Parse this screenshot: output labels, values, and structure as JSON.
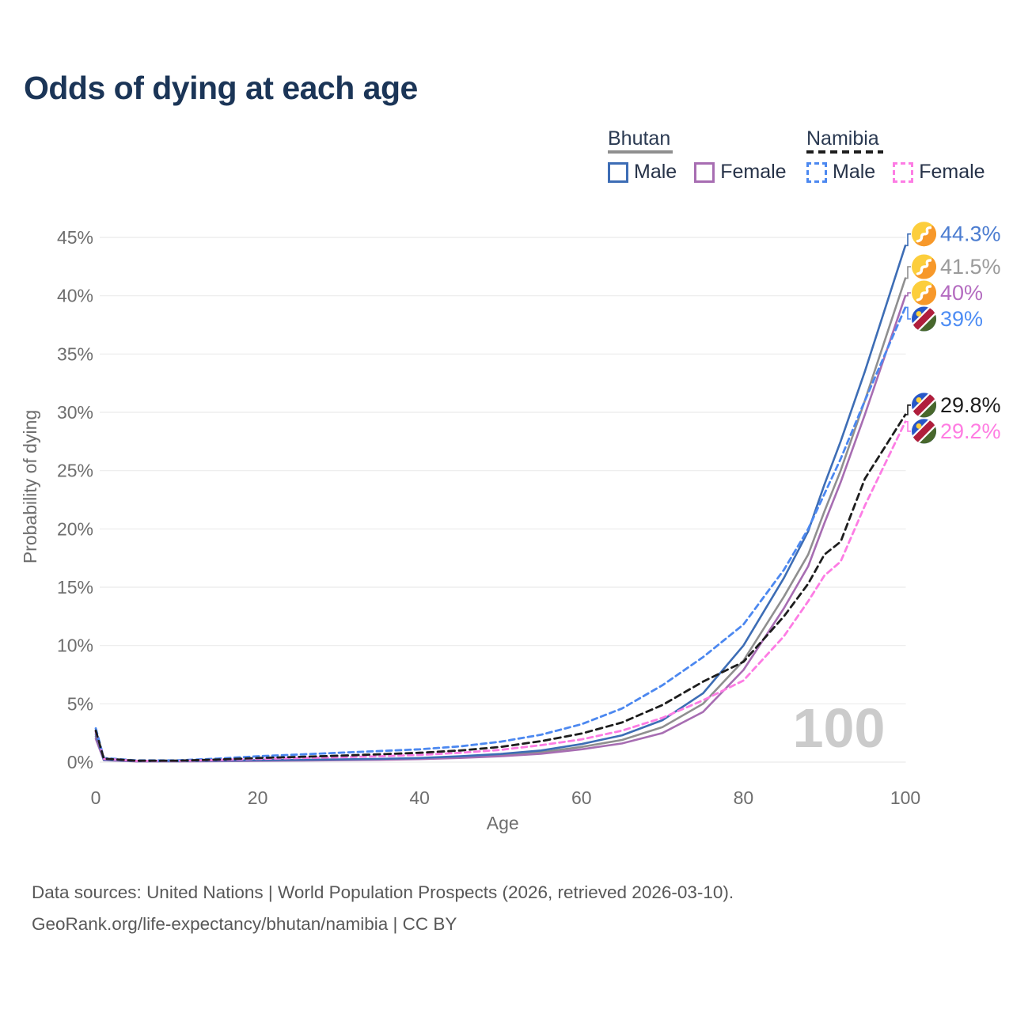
{
  "title": "Odds of dying at each age",
  "legend": {
    "countries": [
      {
        "name": "Bhutan",
        "line_style": "solid",
        "line_color": "#8f8f8f",
        "items": [
          {
            "label": "Male",
            "color": "#3d6db5",
            "style": "solid"
          },
          {
            "label": "Female",
            "color": "#a76db2",
            "style": "solid"
          }
        ]
      },
      {
        "name": "Namibia",
        "line_style": "dashed",
        "line_color": "#1d1d1d",
        "items": [
          {
            "label": "Male",
            "color": "#4c88f0",
            "style": "dashed"
          },
          {
            "label": "Female",
            "color": "#fd7ce4",
            "style": "dashed"
          }
        ]
      }
    ]
  },
  "chart_data": {
    "type": "line",
    "title": "Odds of dying at each age",
    "xlabel": "Age",
    "ylabel": "Probability of dying",
    "xlim": [
      0,
      100
    ],
    "ylim": [
      0,
      45
    ],
    "xticks": [
      0,
      20,
      40,
      60,
      80,
      100
    ],
    "yticks": [
      0,
      5,
      10,
      15,
      20,
      25,
      30,
      35,
      40,
      45
    ],
    "ytick_suffix": "%",
    "grid": "horizontal",
    "legend_position": "top-right",
    "age_indicator": "100",
    "ages": [
      0,
      1,
      5,
      10,
      15,
      20,
      25,
      30,
      35,
      40,
      45,
      50,
      55,
      60,
      65,
      70,
      75,
      80,
      85,
      88,
      90,
      92,
      95,
      100
    ],
    "series": [
      {
        "name": "Bhutan Both",
        "country": "Bhutan",
        "sex": "All",
        "color": "#8f8f8f",
        "dash": "solid",
        "end_label": "41.5%",
        "end_label_color": "#9b9b9b",
        "flag": "bhutan",
        "values": [
          2.2,
          0.18,
          0.07,
          0.07,
          0.1,
          0.13,
          0.16,
          0.19,
          0.24,
          0.3,
          0.42,
          0.6,
          0.85,
          1.3,
          1.9,
          3.0,
          5.0,
          8.7,
          14.2,
          17.8,
          21.5,
          25.0,
          31.0,
          41.5
        ]
      },
      {
        "name": "Bhutan Female",
        "country": "Bhutan",
        "sex": "Female",
        "color": "#a76db2",
        "dash": "solid",
        "end_label": "40%",
        "end_label_color": "#b46cc0",
        "flag": "bhutan",
        "values": [
          2.0,
          0.16,
          0.06,
          0.06,
          0.08,
          0.11,
          0.13,
          0.16,
          0.2,
          0.26,
          0.36,
          0.5,
          0.72,
          1.1,
          1.6,
          2.5,
          4.3,
          7.9,
          13.2,
          16.8,
          20.5,
          24.0,
          29.8,
          40.0
        ]
      },
      {
        "name": "Bhutan Male",
        "country": "Bhutan",
        "sex": "Male",
        "color": "#3d6db5",
        "dash": "solid",
        "end_label": "44.3%",
        "end_label_color": "#4b7cd0",
        "flag": "bhutan",
        "values": [
          2.4,
          0.2,
          0.08,
          0.08,
          0.12,
          0.16,
          0.2,
          0.23,
          0.28,
          0.35,
          0.5,
          0.7,
          1.0,
          1.55,
          2.3,
          3.6,
          5.9,
          10.0,
          15.8,
          19.8,
          23.8,
          27.5,
          33.5,
          44.3
        ]
      },
      {
        "name": "Namibia Male",
        "country": "Namibia",
        "sex": "Male",
        "color": "#4c88f0",
        "dash": "dashed",
        "end_label": "39%",
        "end_label_color": "#4e8df4",
        "flag": "namibia",
        "values": [
          2.9,
          0.35,
          0.15,
          0.15,
          0.3,
          0.5,
          0.65,
          0.8,
          0.95,
          1.1,
          1.35,
          1.75,
          2.35,
          3.25,
          4.6,
          6.6,
          9.0,
          11.8,
          16.5,
          20.0,
          23.0,
          26.0,
          31.0,
          39.0
        ]
      },
      {
        "name": "Namibia Female",
        "country": "Namibia",
        "sex": "Female",
        "color": "#fd7ce4",
        "dash": "dashed",
        "end_label": "29.2%",
        "end_label_color": "#ff7ce2",
        "flag": "namibia",
        "values": [
          2.6,
          0.28,
          0.1,
          0.1,
          0.18,
          0.28,
          0.35,
          0.42,
          0.5,
          0.62,
          0.8,
          1.05,
          1.45,
          1.95,
          2.7,
          3.8,
          5.3,
          7.0,
          10.8,
          13.8,
          16.0,
          17.2,
          22.0,
          29.2
        ]
      },
      {
        "name": "Namibia Both",
        "country": "Namibia",
        "sex": "All",
        "color": "#1d1d1d",
        "dash": "dashed",
        "end_label": "29.8%",
        "end_label_color": "#1d1d1d",
        "flag": "namibia",
        "values": [
          2.7,
          0.3,
          0.12,
          0.12,
          0.22,
          0.35,
          0.45,
          0.55,
          0.67,
          0.8,
          1.0,
          1.3,
          1.8,
          2.45,
          3.4,
          4.9,
          6.9,
          8.6,
          12.5,
          15.3,
          17.8,
          18.9,
          24.3,
          29.8
        ]
      }
    ]
  },
  "footer": {
    "line1": "Data sources: United Nations | World Population Prospects (2026, retrieved 2026-03-10).",
    "line2": "GeoRank.org/life-expectancy/bhutan/namibia | CC BY"
  }
}
